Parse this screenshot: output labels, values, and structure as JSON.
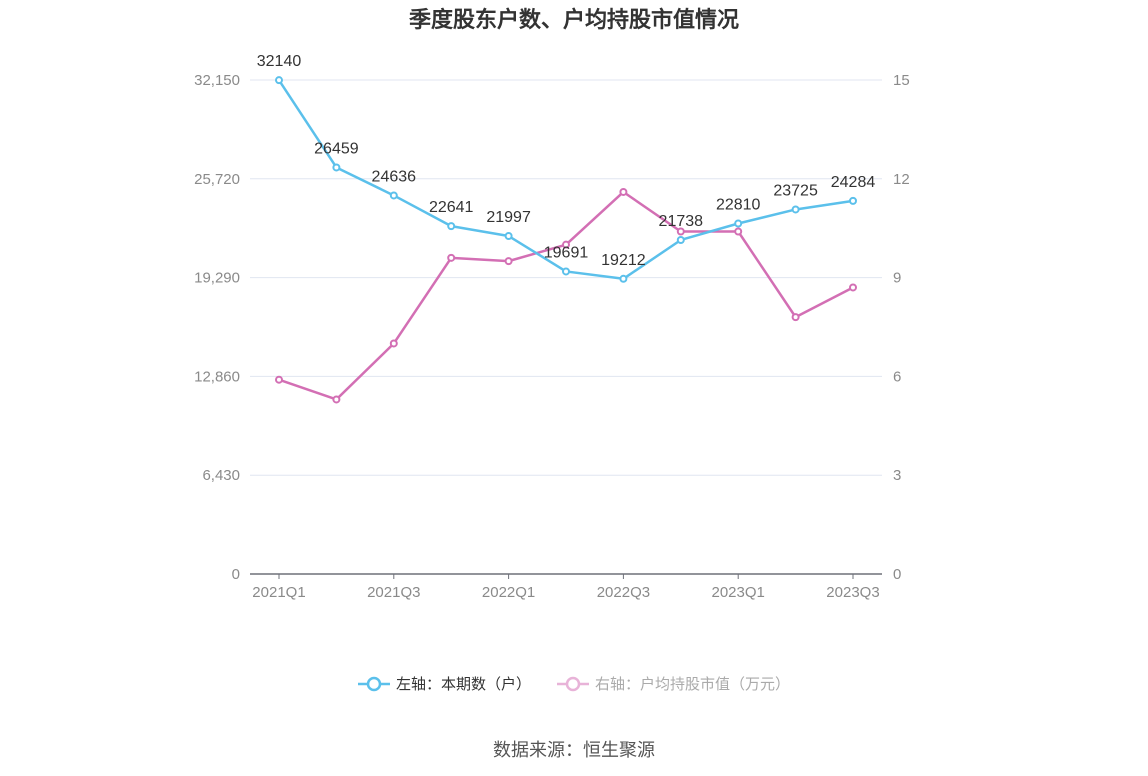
{
  "title": "季度股东户数、户均持股市值情况",
  "source": "数据来源：恒生聚源",
  "legend": [
    {
      "label": "左轴：本期数（户）",
      "color": "#5bc0eb"
    },
    {
      "label": "右轴：户均持股市值（万元）",
      "color": "#d36fb4"
    }
  ],
  "chart_data": {
    "type": "line",
    "title": "季度股东户数、户均持股市值情况",
    "categories": [
      "2021Q1",
      "2021Q2",
      "2021Q3",
      "2021Q4",
      "2022Q1",
      "2022Q2",
      "2022Q3",
      "2022Q4",
      "2023Q1",
      "2023Q2",
      "2023Q3"
    ],
    "x_tick_labels": [
      "2021Q1",
      "2021Q3",
      "2022Q1",
      "2022Q3",
      "2023Q1",
      "2023Q3"
    ],
    "left_axis": {
      "min": 0,
      "max": 32150,
      "ticks": [
        0,
        6430,
        12860,
        19290,
        25720,
        32150
      ],
      "tick_labels": [
        "0",
        "6,430",
        "12,860",
        "19,290",
        "25,720",
        "32,150"
      ]
    },
    "right_axis": {
      "min": 0,
      "max": 15,
      "ticks": [
        0,
        3,
        6,
        9,
        12,
        15
      ],
      "tick_labels": [
        "0",
        "3",
        "6",
        "9",
        "12",
        "15"
      ]
    },
    "grid": true,
    "legend_position": "bottom",
    "series": [
      {
        "name": "左轴：本期数（户）",
        "axis": "left",
        "color": "#5bc0eb",
        "values": [
          32140,
          26459,
          24636,
          22641,
          21997,
          19691,
          19212,
          21738,
          22810,
          23725,
          24284
        ],
        "data_labels": [
          "32140",
          "26459",
          "24636",
          "22641",
          "21997",
          "19691",
          "19212",
          "21738",
          "22810",
          "23725",
          "24284"
        ]
      },
      {
        "name": "右轴：户均持股市值（万元）",
        "axis": "right",
        "color": "#d36fb4",
        "values": [
          5.9,
          5.3,
          7.0,
          9.6,
          9.5,
          10.0,
          11.6,
          10.4,
          10.4,
          7.8,
          8.7
        ]
      }
    ]
  }
}
